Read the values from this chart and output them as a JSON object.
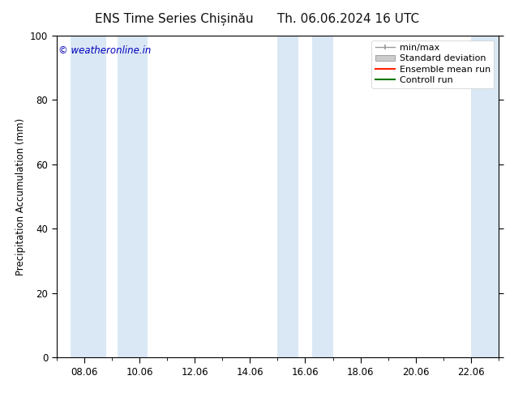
{
  "title_left": "ENS Time Series Chișinău",
  "title_right": "Th. 06.06.2024 16 UTC",
  "ylabel": "Precipitation Accumulation (mm)",
  "ylim": [
    0,
    100
  ],
  "yticks": [
    0,
    20,
    40,
    60,
    80,
    100
  ],
  "x_tick_labels": [
    "08.06",
    "10.06",
    "12.06",
    "14.06",
    "16.06",
    "18.06",
    "20.06",
    "22.06"
  ],
  "x_tick_positions": [
    8,
    10,
    12,
    14,
    16,
    18,
    20,
    22
  ],
  "xlim": [
    7.0,
    23.0
  ],
  "bg_color": "#ffffff",
  "plot_bg_color": "#ffffff",
  "watermark_text": "© weatheronline.in",
  "watermark_color": "#0000bb",
  "shaded_bands": [
    {
      "xmin": 7.5,
      "xmax": 8.8,
      "color": "#dae8f5"
    },
    {
      "xmin": 9.2,
      "xmax": 10.3,
      "color": "#dae8f5"
    },
    {
      "xmin": 15.0,
      "xmax": 15.75,
      "color": "#dae8f5"
    },
    {
      "xmin": 16.25,
      "xmax": 17.0,
      "color": "#dae8f5"
    },
    {
      "xmin": 22.0,
      "xmax": 23.0,
      "color": "#dae8f5"
    }
  ],
  "legend_labels": [
    "min/max",
    "Standard deviation",
    "Ensemble mean run",
    "Controll run"
  ],
  "legend_line_colors": [
    "#aaaaaa",
    "#bbbbbb",
    "#ff2200",
    "#007700"
  ],
  "tick_color": "#000000",
  "title_fontsize": 11,
  "label_fontsize": 8.5,
  "tick_fontsize": 8.5,
  "legend_fontsize": 8
}
